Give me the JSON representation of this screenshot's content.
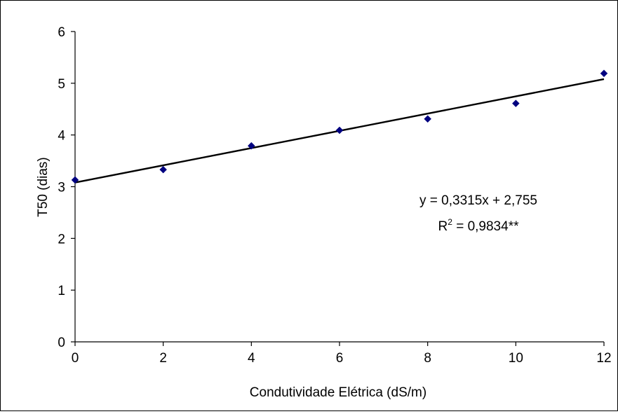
{
  "chart_data": {
    "type": "scatter",
    "title": "",
    "xlabel": "Condutividade Elétrica (dS/m)",
    "ylabel": "T50 (dias)",
    "xlim": [
      0,
      12
    ],
    "ylim": [
      0,
      6
    ],
    "x_ticks": [
      "0",
      "2",
      "4",
      "6",
      "8",
      "10",
      "12"
    ],
    "y_ticks": [
      "0",
      "1",
      "2",
      "3",
      "4",
      "5",
      "6"
    ],
    "grid": false,
    "point_color": "#000080",
    "line_color": "#000000",
    "series": [
      {
        "x": [
          0,
          2,
          4,
          6,
          8,
          10,
          12
        ],
        "y": [
          3.13,
          3.33,
          3.79,
          4.09,
          4.31,
          4.61,
          5.19
        ]
      }
    ],
    "trendline": {
      "start": [
        0,
        3.08
      ],
      "end": [
        12,
        5.08
      ]
    },
    "annotation": {
      "equation": "y = 0,3315x + 2,755",
      "r2_prefix": "R",
      "r2_sup": "2",
      "r2_rest": " = 0,9834**"
    }
  }
}
